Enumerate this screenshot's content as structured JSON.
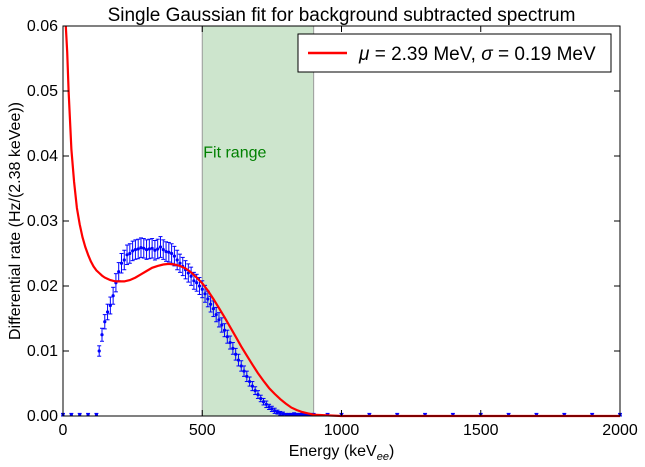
{
  "chart_data": {
    "type": "scatter",
    "title": "Single Gaussian fit for background subtracted spectrum",
    "xlabel": "Energy (keV",
    "xlabel_sub": "ee",
    "xlabel_end": ")",
    "ylabel": "Differential rate (Hz/(2.38 keVee))",
    "xlim": [
      0,
      2000
    ],
    "ylim": [
      0,
      0.06
    ],
    "x_ticks": [
      0,
      500,
      1000,
      1500,
      2000
    ],
    "x_tick_labels": [
      "0",
      "500",
      "1000",
      "1500",
      "2000"
    ],
    "y_ticks": [
      0,
      0.01,
      0.02,
      0.03,
      0.04,
      0.05,
      0.06
    ],
    "y_tick_labels": [
      "0.00",
      "0.01",
      "0.02",
      "0.03",
      "0.04",
      "0.05",
      "0.06"
    ],
    "grid": false,
    "legend_placement": "top-right",
    "fit_range": {
      "label": "Fit range",
      "x": [
        500,
        900
      ],
      "color": "#cde5cd",
      "label_color": "#008000"
    },
    "legend": [
      {
        "mu_symbol": "μ",
        "text_a": " = 2.39 MeV, ",
        "sigma_symbol": "σ",
        "text_b": " = 0.19 MeV",
        "color": "#ff0000"
      }
    ],
    "series": [
      {
        "type": "errorbar",
        "color": "#0000ff",
        "x": [
          0,
          30,
          60,
          90,
          120,
          130,
          140,
          150,
          160,
          170,
          180,
          190,
          200,
          210,
          220,
          230,
          240,
          250,
          260,
          270,
          280,
          290,
          300,
          310,
          320,
          330,
          340,
          350,
          360,
          370,
          380,
          390,
          400,
          410,
          420,
          430,
          440,
          450,
          460,
          470,
          480,
          490,
          500,
          510,
          520,
          530,
          540,
          550,
          560,
          570,
          580,
          590,
          600,
          610,
          620,
          630,
          640,
          650,
          660,
          670,
          680,
          690,
          700,
          710,
          720,
          730,
          740,
          750,
          760,
          770,
          780,
          790,
          800,
          810,
          820,
          830,
          840,
          850,
          860,
          870,
          880,
          890,
          900,
          950,
          1000,
          1100,
          1200,
          1300,
          1400,
          1500,
          1600,
          1700,
          1800,
          1900,
          2000
        ],
        "y": [
          0.0002,
          0.0002,
          0.0002,
          0.0002,
          0.0002,
          0.01,
          0.0125,
          0.0145,
          0.016,
          0.017,
          0.0185,
          0.0205,
          0.0222,
          0.0235,
          0.024,
          0.0248,
          0.025,
          0.0254,
          0.0256,
          0.0257,
          0.0259,
          0.0258,
          0.0256,
          0.0257,
          0.0258,
          0.0255,
          0.0257,
          0.026,
          0.0256,
          0.0253,
          0.0252,
          0.025,
          0.0246,
          0.024,
          0.0235,
          0.023,
          0.0225,
          0.022,
          0.0215,
          0.0208,
          0.0205,
          0.02,
          0.0195,
          0.0188,
          0.018,
          0.0172,
          0.0165,
          0.0156,
          0.0148,
          0.014,
          0.0132,
          0.0122,
          0.0113,
          0.0104,
          0.0095,
          0.0086,
          0.0077,
          0.0069,
          0.0061,
          0.0053,
          0.0046,
          0.0039,
          0.0033,
          0.0027,
          0.0022,
          0.0018,
          0.0014,
          0.0011,
          0.0008,
          0.0006,
          0.0004,
          0.0003,
          0.0002,
          0.0002,
          0.0002,
          0.0003,
          0.0002,
          0.0002,
          0.0003,
          0.0002,
          0.0002,
          0.0002,
          0.0002,
          0.0002,
          0.0002,
          0.0002,
          0.0002,
          0.0002,
          0.0002,
          0.0002,
          0.0002,
          0.0002,
          0.0002,
          0.0002,
          0.0002
        ],
        "yerr": [
          0.0002,
          0.0002,
          0.0002,
          0.0002,
          0.0002,
          0.0008,
          0.001,
          0.0011,
          0.0012,
          0.0013,
          0.0013,
          0.0014,
          0.0014,
          0.0015,
          0.0015,
          0.0015,
          0.0015,
          0.0015,
          0.0015,
          0.0015,
          0.0015,
          0.0015,
          0.0015,
          0.0015,
          0.0015,
          0.0015,
          0.0015,
          0.0016,
          0.0015,
          0.0015,
          0.0015,
          0.0015,
          0.0015,
          0.0015,
          0.0014,
          0.0014,
          0.0014,
          0.0014,
          0.0014,
          0.0013,
          0.0013,
          0.0013,
          0.0013,
          0.0013,
          0.0012,
          0.0012,
          0.0012,
          0.0011,
          0.0011,
          0.0011,
          0.001,
          0.001,
          0.001,
          0.0009,
          0.0009,
          0.0009,
          0.0008,
          0.0008,
          0.0008,
          0.0007,
          0.0007,
          0.0006,
          0.0006,
          0.0005,
          0.0005,
          0.0005,
          0.0004,
          0.0004,
          0.0004,
          0.0003,
          0.0003,
          0.0003,
          0.0002,
          0.0002,
          0.0002,
          0.0002,
          0.0002,
          0.0002,
          0.0002,
          0.0002,
          0.0002,
          0.0002,
          0.0002,
          0.0002,
          0.0002,
          0.0002,
          0.0002,
          0.0002,
          0.0002,
          0.0002,
          0.0002,
          0.0002,
          0.0002,
          0.0002,
          0.0002
        ]
      },
      {
        "type": "line",
        "color": "#ff0000",
        "x": [
          10,
          15,
          20,
          30,
          40,
          50,
          60,
          70,
          80,
          90,
          100,
          110,
          120,
          130,
          140,
          150,
          160,
          170,
          180,
          190,
          200,
          220,
          240,
          260,
          280,
          300,
          320,
          340,
          360,
          380,
          400,
          420,
          440,
          460,
          480,
          500,
          520,
          540,
          560,
          580,
          600,
          620,
          640,
          660,
          680,
          700,
          720,
          740,
          760,
          780,
          800,
          820,
          840,
          860,
          880,
          900,
          950,
          1000,
          1500,
          2000
        ],
        "y": [
          0.06,
          0.056,
          0.05,
          0.041,
          0.036,
          0.032,
          0.0295,
          0.0275,
          0.026,
          0.0248,
          0.0238,
          0.023,
          0.0224,
          0.022,
          0.0216,
          0.0213,
          0.0211,
          0.0209,
          0.0208,
          0.0207,
          0.0207,
          0.0207,
          0.0209,
          0.0213,
          0.0218,
          0.0223,
          0.0228,
          0.0231,
          0.0233,
          0.0234,
          0.0233,
          0.0231,
          0.0227,
          0.0221,
          0.0213,
          0.0204,
          0.0193,
          0.018,
          0.0166,
          0.0152,
          0.0137,
          0.0122,
          0.0107,
          0.0093,
          0.0079,
          0.0066,
          0.0054,
          0.0043,
          0.0034,
          0.0026,
          0.0019,
          0.0013,
          0.0009,
          0.0006,
          0.0004,
          0.0002,
          0.0001,
          0.0,
          0.0,
          0.0
        ]
      }
    ]
  }
}
